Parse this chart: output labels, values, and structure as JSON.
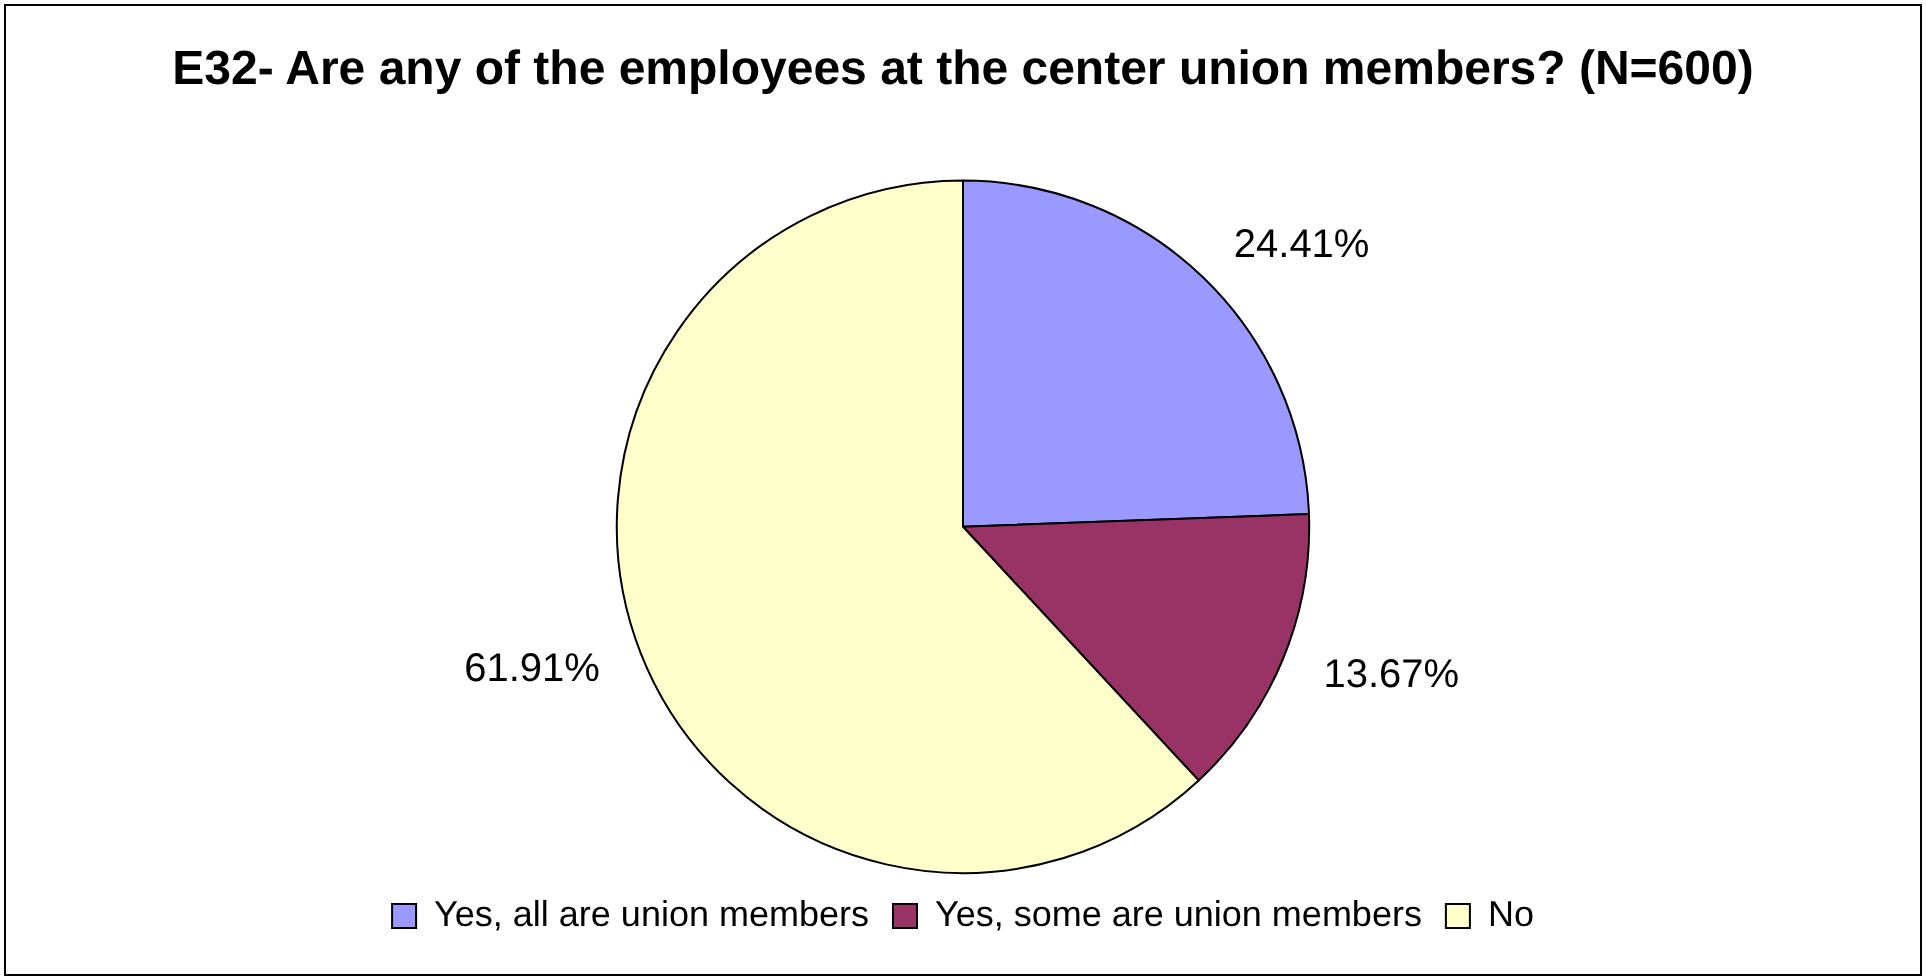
{
  "chart_data": {
    "type": "pie",
    "title": "E32- Are any of the employees at the center union members? (N=600)",
    "categories": [
      "Yes, all are union members",
      "Yes, some are union members",
      "No"
    ],
    "values": [
      24.41,
      13.67,
      61.91
    ],
    "colors": [
      "#9999ff",
      "#993366",
      "#ffffcc"
    ],
    "value_labels": [
      "24.41%",
      "13.67%",
      "61.91%"
    ],
    "legend": "bottom"
  }
}
